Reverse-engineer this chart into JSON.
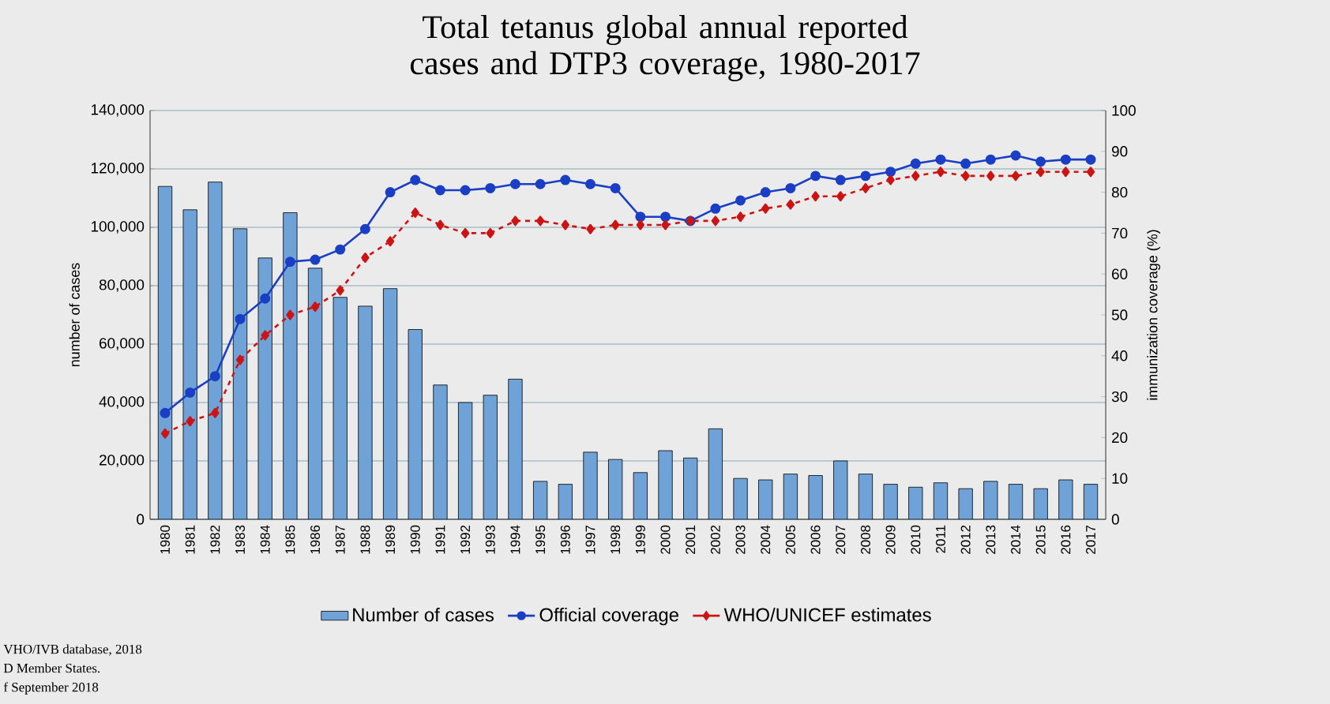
{
  "chart_data": {
    "type": "bar",
    "title": "Total tetanus global annual reported cases and DTP3 coverage, 1980-2017",
    "categories": [
      "1980",
      "1981",
      "1982",
      "1983",
      "1984",
      "1985",
      "1986",
      "1987",
      "1988",
      "1989",
      "1990",
      "1991",
      "1992",
      "1993",
      "1994",
      "1995",
      "1996",
      "1997",
      "1998",
      "1999",
      "2000",
      "2001",
      "2002",
      "2003",
      "2004",
      "2005",
      "2006",
      "2007",
      "2008",
      "2009",
      "2010",
      "2011",
      "2012",
      "2013",
      "2014",
      "2015",
      "2016",
      "2017"
    ],
    "series": [
      {
        "name": "Number of cases",
        "axis": "y",
        "color": "#6fa3d8",
        "values": [
          114000,
          106000,
          115500,
          99500,
          89500,
          105000,
          86000,
          76000,
          73000,
          79000,
          65000,
          46000,
          40000,
          42500,
          48000,
          13000,
          12000,
          23000,
          20500,
          16000,
          23500,
          21000,
          31000,
          14000,
          13500,
          15500,
          15000,
          20000,
          15500,
          12000,
          11000,
          12500,
          10500,
          13000,
          12000,
          10500,
          13500,
          12000
        ]
      },
      {
        "name": "Official coverage",
        "type": "line",
        "axis": "y2",
        "color": "#1a3fc4",
        "marker": "circle",
        "line_style": "solid",
        "values": [
          26,
          31,
          35,
          49,
          54,
          63,
          63.5,
          66,
          71,
          80,
          83,
          80.5,
          80.5,
          81,
          82,
          82,
          83,
          82,
          81,
          74,
          74,
          73,
          76,
          78,
          80,
          81,
          84,
          83,
          84,
          85,
          87,
          88,
          87,
          88,
          89,
          87.5,
          88,
          88
        ]
      },
      {
        "name": "WHO/UNICEF estimates",
        "type": "line",
        "axis": "y2",
        "color": "#cc1414",
        "marker": "diamond",
        "line_style": "dashed",
        "values": [
          21,
          24,
          26,
          39,
          45,
          50,
          52,
          56,
          64,
          68,
          75,
          72,
          70,
          70,
          73,
          73,
          72,
          71,
          72,
          72,
          72,
          73,
          73,
          74,
          76,
          77,
          79,
          79,
          81,
          83,
          84,
          85,
          84,
          84,
          84,
          85,
          85,
          85
        ]
      }
    ],
    "ylim": [
      0,
      140000
    ],
    "yticks": [
      0,
      {
        "value": 20000,
        "label": "20,000"
      },
      {
        "value": 40000,
        "label": "40,000"
      },
      {
        "value": 60000,
        "label": "60,000"
      },
      {
        "value": 80000,
        "label": "80,000"
      },
      {
        "value": 100000,
        "label": "100,000"
      },
      {
        "value": 120000,
        "label": "120,000"
      },
      {
        "value": 140000,
        "label": "140,000"
      }
    ],
    "y2lim": [
      0,
      100
    ],
    "y2ticks": [
      0,
      10,
      20,
      30,
      40,
      50,
      60,
      70,
      80,
      90,
      100
    ],
    "ylabel": "number of cases",
    "y2label": "immunization coverage (%)",
    "grid": "y",
    "legend": "bottom",
    "annotations": [
      "VHO/IVB database,  2018",
      "D Member States.",
      "f September 2018"
    ]
  }
}
